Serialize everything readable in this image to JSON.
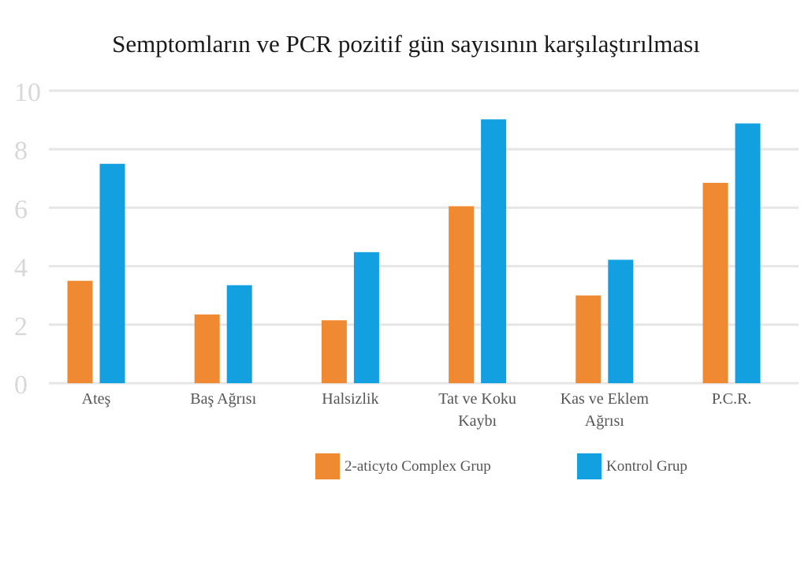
{
  "title": "Semptomların ve PCR pozitif gün sayısının karşılaştırılması",
  "colors": {
    "series_a": "#f08a32",
    "series_b": "#12a0e0",
    "grid": "#e6e6e6",
    "ytick": "#d8d8d8",
    "xtick": "#555555"
  },
  "chart_data": {
    "type": "bar",
    "title": "Semptomların ve PCR pozitif gün sayısının karşılaştırılması",
    "categories": [
      [
        "Ateş"
      ],
      [
        "Baş Ağrısı"
      ],
      [
        "Halsizlik"
      ],
      [
        "Tat ve Koku",
        "Kaybı"
      ],
      [
        "Kas ve Eklem",
        "Ağrısı"
      ],
      [
        "P.C.R."
      ]
    ],
    "series": [
      {
        "name": "2-aticyto Complex Grup",
        "values": [
          3.5,
          2.35,
          2.15,
          6.05,
          3.0,
          6.85
        ]
      },
      {
        "name": "Kontrol Grup",
        "values": [
          7.5,
          3.35,
          4.48,
          9.02,
          4.22,
          8.88
        ]
      }
    ],
    "ylim": [
      0,
      10
    ],
    "yticks": [
      0,
      2,
      4,
      6,
      8,
      10
    ],
    "grid": true,
    "legend_position": "bottom"
  }
}
